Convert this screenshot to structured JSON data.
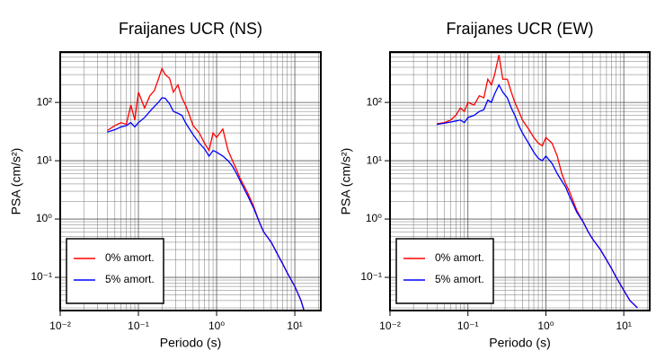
{
  "chart_data": [
    {
      "type": "line",
      "title": "Fraijanes UCR (NS)",
      "xlabel": "Periodo (s)",
      "ylabel": "PSA (cm/s²)",
      "xlog": true,
      "ylog": true,
      "grid": true,
      "legend": "lower left",
      "xlim": [
        0.01,
        21.5
      ],
      "ylim": [
        0.027,
        730
      ],
      "xticks": [
        {
          "value": 0.01,
          "label": "10⁻²"
        },
        {
          "value": 0.1,
          "label": "10⁻¹"
        },
        {
          "value": 1,
          "label": "10⁰"
        },
        {
          "value": 10,
          "label": "10¹"
        }
      ],
      "yticks": [
        {
          "value": 0.1,
          "label": "10⁻¹"
        },
        {
          "value": 1,
          "label": "10⁰"
        },
        {
          "value": 10,
          "label": "10¹"
        },
        {
          "value": 100,
          "label": "10²"
        }
      ],
      "xminor": [
        0.02,
        0.03,
        0.04,
        0.05,
        0.06,
        0.07,
        0.08,
        0.09,
        0.2,
        0.3,
        0.4,
        0.5,
        0.6,
        0.7,
        0.8,
        0.9,
        2,
        3,
        4,
        5,
        6,
        7,
        8,
        9,
        20
      ],
      "yminor": [
        0.03,
        0.04,
        0.05,
        0.06,
        0.07,
        0.08,
        0.09,
        0.2,
        0.3,
        0.4,
        0.5,
        0.6,
        0.7,
        0.8,
        0.9,
        2,
        3,
        4,
        5,
        6,
        7,
        8,
        9,
        20,
        30,
        40,
        50,
        60,
        70,
        80,
        90,
        200,
        300,
        400,
        500,
        600,
        700
      ],
      "x": [
        0.04,
        0.05,
        0.06,
        0.07,
        0.08,
        0.09,
        0.1,
        0.12,
        0.14,
        0.16,
        0.18,
        0.2,
        0.22,
        0.25,
        0.28,
        0.32,
        0.36,
        0.4,
        0.45,
        0.5,
        0.6,
        0.7,
        0.8,
        0.9,
        1.0,
        1.2,
        1.4,
        1.6,
        1.8,
        2.0,
        2.5,
        3.0,
        3.5,
        4.0,
        5.0,
        6,
        7,
        8,
        10,
        12,
        13
      ],
      "series": [
        {
          "name": "0% amort.",
          "color": "#ff0000",
          "values": [
            33,
            40,
            45,
            42,
            90,
            50,
            150,
            80,
            130,
            160,
            250,
            380,
            300,
            260,
            150,
            200,
            120,
            90,
            60,
            40,
            30,
            20,
            15,
            30,
            25,
            35,
            15,
            10,
            7,
            5,
            2.8,
            1.6,
            0.9,
            0.6,
            0.4,
            0.25,
            0.17,
            0.12,
            0.07,
            0.04,
            0.028
          ]
        },
        {
          "name": "5% amort.",
          "color": "#0000ff",
          "values": [
            31,
            34,
            38,
            40,
            45,
            38,
            45,
            55,
            70,
            85,
            100,
            120,
            118,
            95,
            70,
            65,
            60,
            45,
            35,
            28,
            20,
            16,
            12,
            15,
            14,
            12,
            10,
            8,
            6,
            4.5,
            2.5,
            1.5,
            0.9,
            0.6,
            0.4,
            0.25,
            0.17,
            0.12,
            0.07,
            0.04,
            0.028
          ]
        }
      ]
    },
    {
      "type": "line",
      "title": "Fraijanes UCR (EW)",
      "xlabel": "Periodo (s)",
      "ylabel": "PSA (cm/s²)",
      "xlog": true,
      "ylog": true,
      "grid": true,
      "legend": "lower left",
      "xlim": [
        0.01,
        21.5
      ],
      "ylim": [
        0.027,
        730
      ],
      "xticks": [
        {
          "value": 0.01,
          "label": "10⁻²"
        },
        {
          "value": 0.1,
          "label": "10⁻¹"
        },
        {
          "value": 1,
          "label": "10⁰"
        },
        {
          "value": 10,
          "label": "10¹"
        }
      ],
      "yticks": [
        {
          "value": 0.1,
          "label": "10⁻¹"
        },
        {
          "value": 1,
          "label": "10⁰"
        },
        {
          "value": 10,
          "label": "10¹"
        },
        {
          "value": 100,
          "label": "10²"
        }
      ],
      "xminor": [
        0.02,
        0.03,
        0.04,
        0.05,
        0.06,
        0.07,
        0.08,
        0.09,
        0.2,
        0.3,
        0.4,
        0.5,
        0.6,
        0.7,
        0.8,
        0.9,
        2,
        3,
        4,
        5,
        6,
        7,
        8,
        9,
        20
      ],
      "yminor": [
        0.03,
        0.04,
        0.05,
        0.06,
        0.07,
        0.08,
        0.09,
        0.2,
        0.3,
        0.4,
        0.5,
        0.6,
        0.7,
        0.8,
        0.9,
        2,
        3,
        4,
        5,
        6,
        7,
        8,
        9,
        20,
        30,
        40,
        50,
        60,
        70,
        80,
        90,
        200,
        300,
        400,
        500,
        600,
        700
      ],
      "x": [
        0.04,
        0.05,
        0.06,
        0.07,
        0.08,
        0.09,
        0.1,
        0.12,
        0.14,
        0.16,
        0.18,
        0.2,
        0.22,
        0.25,
        0.28,
        0.32,
        0.36,
        0.4,
        0.45,
        0.5,
        0.6,
        0.7,
        0.8,
        0.9,
        1.0,
        1.2,
        1.4,
        1.6,
        1.8,
        2.0,
        2.5,
        3.0,
        3.5,
        4.0,
        5.0,
        6,
        7,
        8,
        10,
        12,
        15
      ],
      "series": [
        {
          "name": "0% amort.",
          "color": "#ff0000",
          "values": [
            43,
            45,
            50,
            60,
            80,
            70,
            100,
            90,
            130,
            120,
            250,
            200,
            300,
            650,
            250,
            250,
            150,
            100,
            70,
            50,
            35,
            25,
            20,
            18,
            25,
            20,
            12,
            6,
            4,
            3,
            1.4,
            0.9,
            0.6,
            0.45,
            0.3,
            0.2,
            0.14,
            0.1,
            0.06,
            0.04,
            0.03
          ]
        },
        {
          "name": "5% amort.",
          "color": "#0000ff",
          "values": [
            42,
            44,
            46,
            48,
            50,
            45,
            55,
            60,
            70,
            75,
            110,
            100,
            140,
            200,
            150,
            120,
            80,
            60,
            40,
            30,
            20,
            14,
            11,
            10,
            12,
            9,
            6,
            4.5,
            3.5,
            2.5,
            1.3,
            0.9,
            0.6,
            0.45,
            0.3,
            0.2,
            0.14,
            0.1,
            0.06,
            0.04,
            0.03
          ]
        }
      ]
    }
  ]
}
